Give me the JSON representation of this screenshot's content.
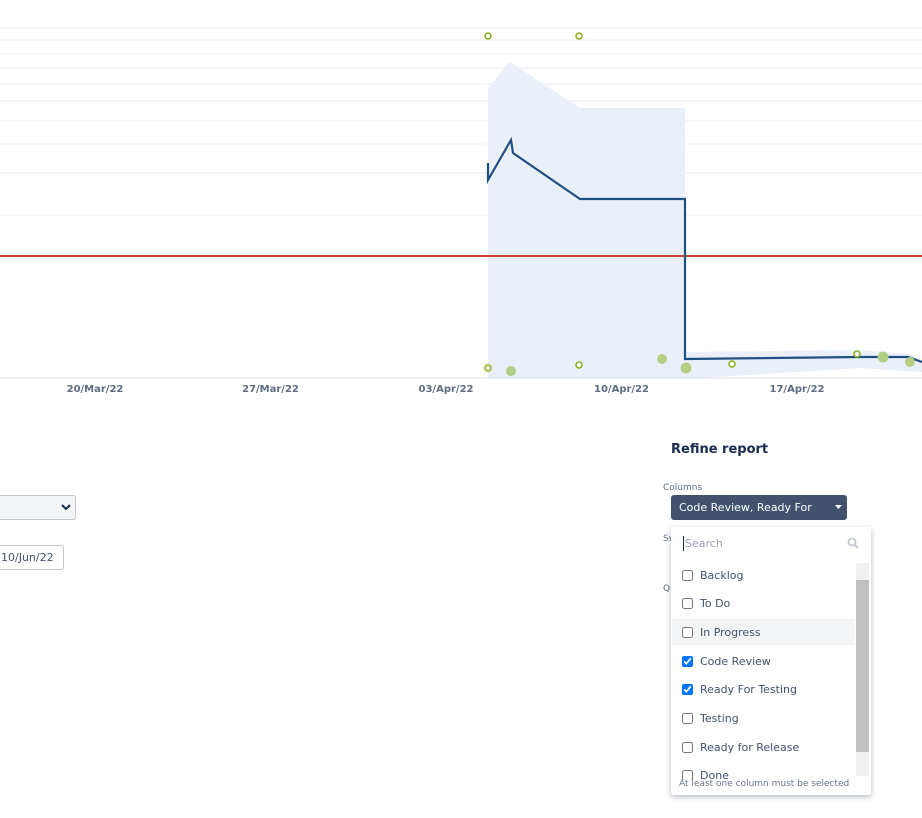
{
  "chart": {
    "x_labels": [
      "20/Mar/22",
      "27/Mar/22",
      "03/Apr/22",
      "10/Apr/22",
      "17/Apr/22"
    ]
  },
  "filters": {
    "date_input": "10/Jun/22"
  },
  "refine": {
    "title": "Refine report",
    "hidden_labels": [
      "Sw",
      "Q"
    ],
    "columns": {
      "label": "Columns",
      "button": "Code Review, Ready For Testi...",
      "search_placeholder": "Search",
      "options": [
        {
          "label": "Backlog",
          "checked": false
        },
        {
          "label": "To Do",
          "checked": false
        },
        {
          "label": "In Progress",
          "checked": false,
          "highlighted": true
        },
        {
          "label": "Code Review",
          "checked": true
        },
        {
          "label": "Ready For Testing",
          "checked": true
        },
        {
          "label": "Testing",
          "checked": false
        },
        {
          "label": "Ready for Release",
          "checked": false
        },
        {
          "label": "Done",
          "checked": false
        }
      ],
      "hint": "At least one column must be selected"
    }
  }
}
